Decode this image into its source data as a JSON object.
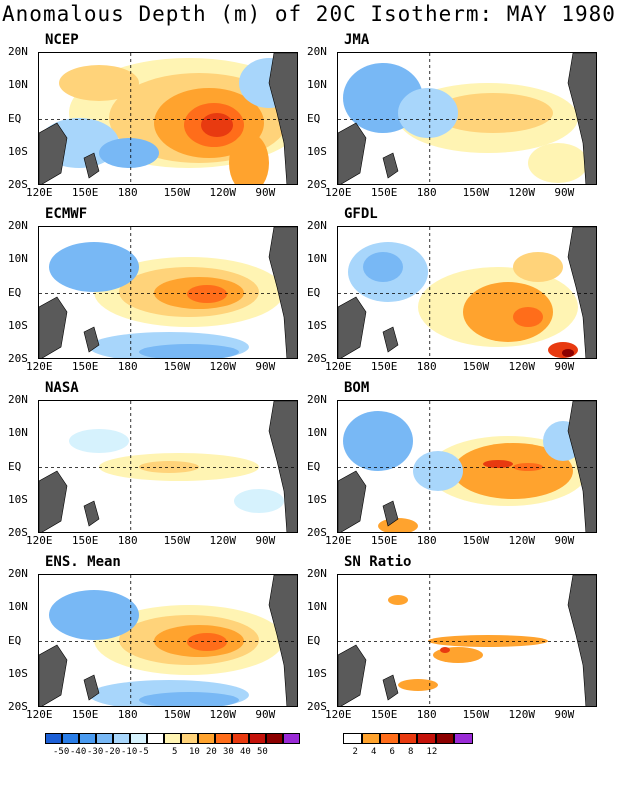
{
  "title": "Anomalous Depth (m) of 20C Isotherm: MAY 1980",
  "lat_labels": [
    "20N",
    "10N",
    "EQ",
    "10S",
    "20S"
  ],
  "lon_labels": [
    "120E",
    "150E",
    "180",
    "150W",
    "120W",
    "90W"
  ],
  "chart_data": [
    {
      "type": "heatmap",
      "title": "NCEP",
      "pattern": "strong-warm-east",
      "xlim": [
        120,
        290
      ],
      "ylim": [
        -20,
        20
      ]
    },
    {
      "type": "heatmap",
      "title": "JMA",
      "pattern": "mild-warm",
      "xlim": [
        120,
        290
      ],
      "ylim": [
        -20,
        20
      ]
    },
    {
      "type": "heatmap",
      "title": "ECMWF",
      "pattern": "warm-center",
      "xlim": [
        120,
        290
      ],
      "ylim": [
        -20,
        20
      ]
    },
    {
      "type": "heatmap",
      "title": "GFDL",
      "pattern": "warm-south",
      "xlim": [
        120,
        290
      ],
      "ylim": [
        -20,
        20
      ]
    },
    {
      "type": "heatmap",
      "title": "NASA",
      "pattern": "weak",
      "xlim": [
        120,
        290
      ],
      "ylim": [
        -20,
        20
      ]
    },
    {
      "type": "heatmap",
      "title": "BOM",
      "pattern": "warm-eq-band",
      "xlim": [
        120,
        290
      ],
      "ylim": [
        -20,
        20
      ]
    },
    {
      "type": "heatmap",
      "title": "ENS. Mean",
      "pattern": "warm-center",
      "xlim": [
        120,
        290
      ],
      "ylim": [
        -20,
        20
      ]
    },
    {
      "type": "heatmap",
      "title": "SN Ratio",
      "pattern": "sn",
      "xlim": [
        120,
        290
      ],
      "ylim": [
        -20,
        20
      ]
    }
  ],
  "colorbar_anomaly": {
    "colors": [
      "#1c5fd6",
      "#2a7de6",
      "#4a9bf0",
      "#78b8f5",
      "#a8d6fb",
      "#d6f2fd",
      "#ffffff",
      "#fff4b3",
      "#ffd37a",
      "#ffa32e",
      "#ff6d1a",
      "#e83a10",
      "#c4120a",
      "#8c0000",
      "#9a2bd6"
    ],
    "labels": [
      "-50",
      "-40",
      "-30",
      "-20",
      "-10",
      "-5",
      "5",
      "10",
      "20",
      "30",
      "40",
      "50"
    ]
  },
  "colorbar_sn": {
    "colors": [
      "#ffffff",
      "#ffa32e",
      "#ff6d1a",
      "#e83a10",
      "#c4120a",
      "#8c0000",
      "#9a2bd6"
    ],
    "labels": [
      "2",
      "4",
      "6",
      "8",
      "12"
    ]
  }
}
